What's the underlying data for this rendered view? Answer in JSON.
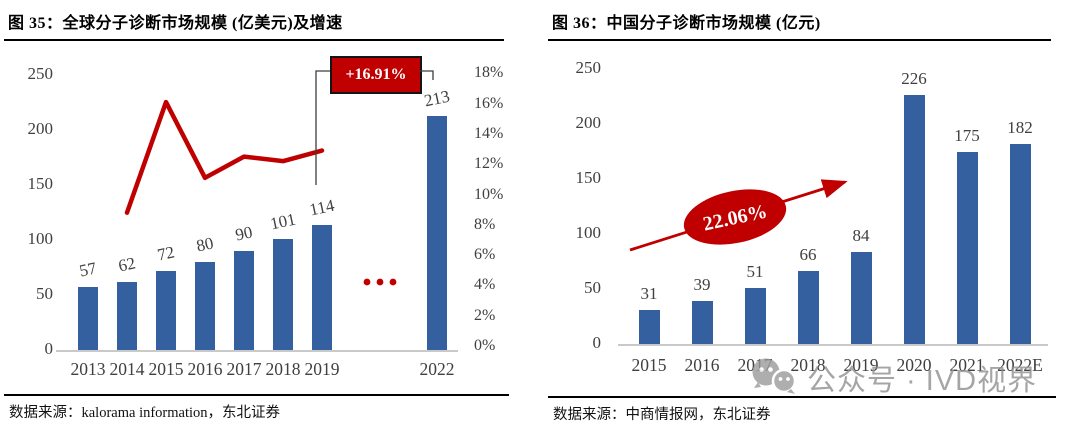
{
  "panels": [
    {
      "title": "图 35：全球分子诊断市场规模 (亿美元)及增速",
      "source": "数据来源：kalorama information，东北证券"
    },
    {
      "title": "图 36：中国分子诊断市场规模 (亿元)",
      "source": "数据来源：中商情报网，东北证券"
    }
  ],
  "watermark": {
    "icon": "wechat-icon",
    "text": "公众号 · IVD视界"
  },
  "colors": {
    "bar": "#35609F",
    "red": "#C00000",
    "axis_text": "#404040",
    "baseline": "#C9C9C9",
    "bracket": "#3d3d3d",
    "annotation_bg": "#C00000",
    "annotation_text": "#FFFFFF",
    "watermark": "#9A9A9A"
  },
  "chart_data": [
    {
      "type": "bar",
      "title": "全球分子诊断市场规模 (亿美元)及增速",
      "categories": [
        "2013",
        "2014",
        "2015",
        "2016",
        "2017",
        "2018",
        "2019",
        "2022"
      ],
      "series": [
        {
          "name": "市场规模(亿美元)",
          "type": "bar",
          "values": [
            57,
            62,
            72,
            80,
            90,
            101,
            114,
            213
          ]
        },
        {
          "name": "增速",
          "type": "line",
          "axis": "right",
          "x": [
            "2014",
            "2015",
            "2016",
            "2017",
            "2018",
            "2019"
          ],
          "values_pct": [
            8.8,
            16.1,
            11.1,
            12.5,
            12.2,
            12.9
          ]
        }
      ],
      "annotation": "+16.91%",
      "ellipsis_dots": 3,
      "left_axis": {
        "ticks": [
          0,
          50,
          100,
          150,
          200,
          250
        ],
        "lim": [
          0,
          250
        ]
      },
      "right_axis": {
        "ticks": [
          "0%",
          "2%",
          "4%",
          "6%",
          "8%",
          "10%",
          "12%",
          "14%",
          "16%",
          "18%"
        ],
        "lim_pct": [
          0,
          18
        ]
      },
      "grid": false,
      "legend": "none"
    },
    {
      "type": "bar",
      "title": "中国分子诊断市场规模 (亿元)",
      "categories": [
        "2015",
        "2016",
        "2017",
        "2018",
        "2019",
        "2020",
        "2021",
        "2022E"
      ],
      "values": [
        31,
        39,
        51,
        66,
        84,
        226,
        175,
        182
      ],
      "annotation": "22.06%",
      "left_axis": {
        "ticks": [
          0,
          50,
          100,
          150,
          200,
          250
        ],
        "lim": [
          0,
          250
        ]
      },
      "grid": false,
      "legend": "none"
    }
  ]
}
